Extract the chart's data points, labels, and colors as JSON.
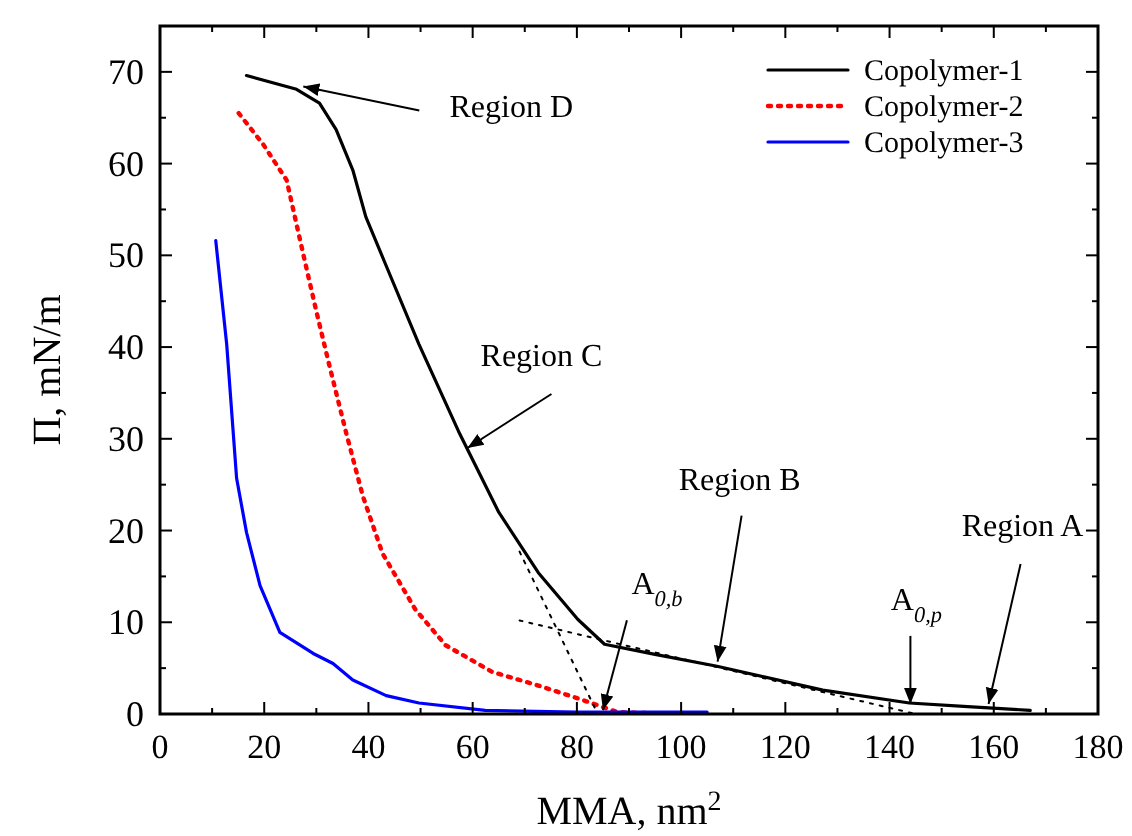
{
  "chart_data": {
    "type": "line",
    "xlabel": "MMA, nm$^{2}$",
    "ylabel": "Π, mN/m",
    "xlim": [
      0,
      180
    ],
    "ylim": [
      0,
      75
    ],
    "xticks": [
      0,
      {
        "value": 10,
        "label": null
      },
      20,
      {
        "value": 30,
        "label": null
      },
      40,
      {
        "value": 50,
        "label": null
      },
      60,
      {
        "value": 70,
        "label": null
      },
      80,
      {
        "value": 90,
        "label": null
      },
      100,
      {
        "value": 110,
        "label": null
      },
      120,
      {
        "value": 130,
        "label": null
      },
      140,
      {
        "value": 150,
        "label": null
      },
      160,
      {
        "value": 170,
        "label": null
      },
      180
    ],
    "yticks": [
      0,
      {
        "value": 5,
        "label": null
      },
      10,
      {
        "value": 15,
        "label": null
      },
      20,
      {
        "value": 25,
        "label": null
      },
      30,
      {
        "value": 35,
        "label": null
      },
      40,
      {
        "value": 45,
        "label": null
      },
      50,
      {
        "value": 55,
        "label": null
      },
      60,
      {
        "value": 65,
        "label": null
      },
      70,
      {
        "value": 75,
        "label": null
      }
    ],
    "legend": "top right",
    "grid": false,
    "series": [
      {
        "name": "Copolymer-1",
        "color": "#000000",
        "line_style": "solid",
        "x": [
          16.6,
          26.2,
          30.6,
          33.8,
          37,
          39.5,
          43.3,
          49.7,
          57.3,
          65,
          72.6,
          80.2,
          85.3,
          95,
          106.9,
          127.2,
          143.8,
          155,
          167
        ],
        "values": [
          69.6,
          68.1,
          66.6,
          63.7,
          59.3,
          54.2,
          49,
          40.3,
          30.8,
          22,
          15.4,
          10.3,
          7.6,
          6.5,
          5.2,
          2.6,
          1.2,
          0.8,
          0.4
        ]
      },
      {
        "name": "Copolymer-2",
        "color": "#ff0000",
        "line_style": "dotted",
        "x": [
          15.1,
          19.8,
          24.3,
          27.5,
          30,
          32.5,
          35.7,
          38.9,
          42.7,
          49,
          54.8,
          63.7,
          72.6,
          80.2,
          87.8,
          100
        ],
        "values": [
          65.5,
          62.1,
          58.2,
          50.1,
          43.9,
          38,
          30.7,
          23.8,
          17.5,
          11.4,
          7.5,
          4.6,
          3.1,
          1.7,
          0.2,
          0
        ]
      },
      {
        "name": "Copolymer-3",
        "color": "#0000ff",
        "line_style": "solid",
        "x": [
          10.7,
          12.8,
          14.7,
          16.6,
          19.2,
          23,
          29.4,
          33.2,
          37,
          43.4,
          49.7,
          62.4,
          80,
          105
        ],
        "values": [
          51.6,
          40.3,
          25.7,
          19.8,
          14,
          8.9,
          6.6,
          5.5,
          3.7,
          2,
          1.2,
          0.4,
          0.2,
          0.2
        ]
      },
      {
        "color": "#000000",
        "line_style": "dotted",
        "x": [
          69,
          84
        ],
        "values": [
          17.7,
          0
        ]
      },
      {
        "color": "#000000",
        "line_style": "dotted",
        "x": [
          69,
          145
        ],
        "values": [
          10.2,
          0
        ]
      }
    ],
    "annotations": [
      {
        "text": "Region D",
        "x": 27.5,
        "y": 68.4
      },
      {
        "text": "Region C",
        "x": 59,
        "y": 29
      },
      {
        "text": "Region B",
        "x": 107,
        "y": 5.7
      },
      {
        "text": "Region A",
        "x": 159,
        "y": 1.1
      },
      {
        "text": "A$_{0,b}$",
        "x": 85,
        "y": 0.4
      },
      {
        "text": "A$_{0,p}$",
        "x": 144,
        "y": 1.1
      }
    ]
  }
}
